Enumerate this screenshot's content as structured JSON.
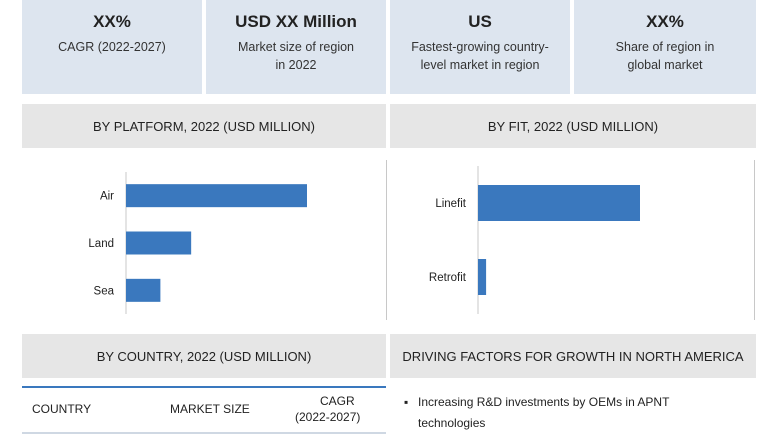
{
  "kpis": [
    {
      "value": "XX%",
      "label_lines": [
        "CAGR (2022-2027)"
      ]
    },
    {
      "value": "USD XX Million",
      "label_lines": [
        "Market size of region",
        "in 2022"
      ]
    },
    {
      "value": "US",
      "label_lines": [
        "Fastest-growing country-",
        "level market in region"
      ]
    },
    {
      "value": "XX%",
      "label_lines": [
        "Share of region in",
        "global market"
      ]
    }
  ],
  "sections": {
    "platform": "BY PLATFORM, 2022 (USD MILLION)",
    "fit": "BY FIT, 2022 (USD MILLION)",
    "country": "BY COUNTRY, 2022 (USD MILLION)",
    "drivers": "DRIVING FACTORS FOR GROWTH IN NORTH AMERICA"
  },
  "chart_data": [
    {
      "type": "bar",
      "orientation": "horizontal",
      "title": "BY PLATFORM, 2022 (USD MILLION)",
      "categories": [
        "Air",
        "Land",
        "Sea"
      ],
      "values": [
        100,
        36,
        19
      ],
      "xlim": [
        0,
        100
      ]
    },
    {
      "type": "bar",
      "orientation": "horizontal",
      "title": "BY FIT, 2022 (USD MILLION)",
      "categories": [
        "Linefit",
        "Retrofit"
      ],
      "values": [
        100,
        5
      ],
      "xlim": [
        0,
        100
      ]
    }
  ],
  "table": {
    "headers": [
      "COUNTRY",
      "MARKET SIZE",
      "CAGR",
      "(2022-2027)"
    ]
  },
  "drivers": {
    "bullet": "▪",
    "items": [
      "Increasing R&D investments by OEMs in APNT",
      "technologies"
    ]
  },
  "colors": {
    "bar": "#3a78be",
    "kpi_bg": "#dde5ef",
    "header_bg": "#e6e6e6"
  }
}
